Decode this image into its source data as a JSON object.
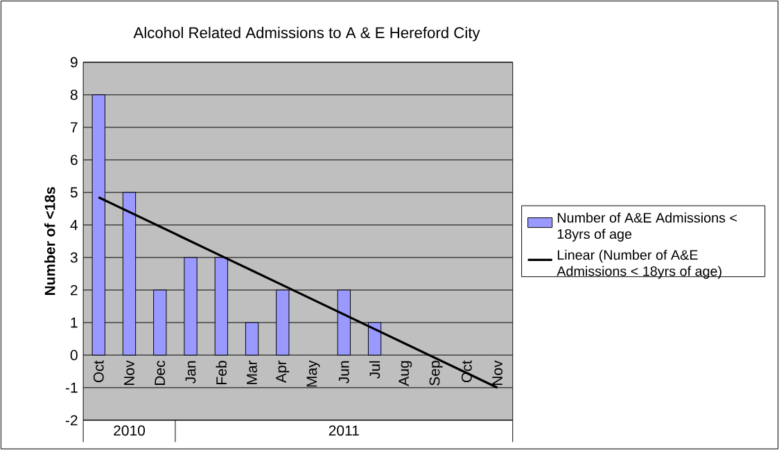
{
  "chart_data": {
    "type": "bar",
    "title": "Alcohol Related Admissions to A & E Hereford City",
    "ylabel": "Number of <18s",
    "categories": [
      "Oct",
      "Nov",
      "Dec",
      "Jan",
      "Feb",
      "Mar",
      "Apr",
      "May",
      "Jun",
      "Jul",
      "Aug",
      "Sep",
      "Oct",
      "Nov"
    ],
    "series": [
      {
        "name": "Number of A&E Admissions < 18yrs of age",
        "color": "#9999ff",
        "values": [
          8,
          5,
          2,
          3,
          3,
          1,
          2,
          null,
          2,
          1,
          null,
          null,
          null,
          null
        ]
      },
      {
        "name": "Linear (Number of A&E Admissions < 18yrs of age)",
        "type": "line",
        "color": "#000000",
        "values": [
          4.85,
          4.4,
          3.95,
          3.5,
          3.05,
          2.6,
          2.15,
          1.7,
          1.25,
          0.8,
          0.35,
          -0.1,
          -0.55,
          -1.0
        ]
      }
    ],
    "annotations": [
      "2010",
      "2011"
    ],
    "ylim": [
      -2,
      9
    ],
    "yticks": [
      -2,
      -1,
      0,
      1,
      2,
      3,
      4,
      5,
      6,
      7,
      8,
      9
    ],
    "grid": "y",
    "legend": "right"
  }
}
